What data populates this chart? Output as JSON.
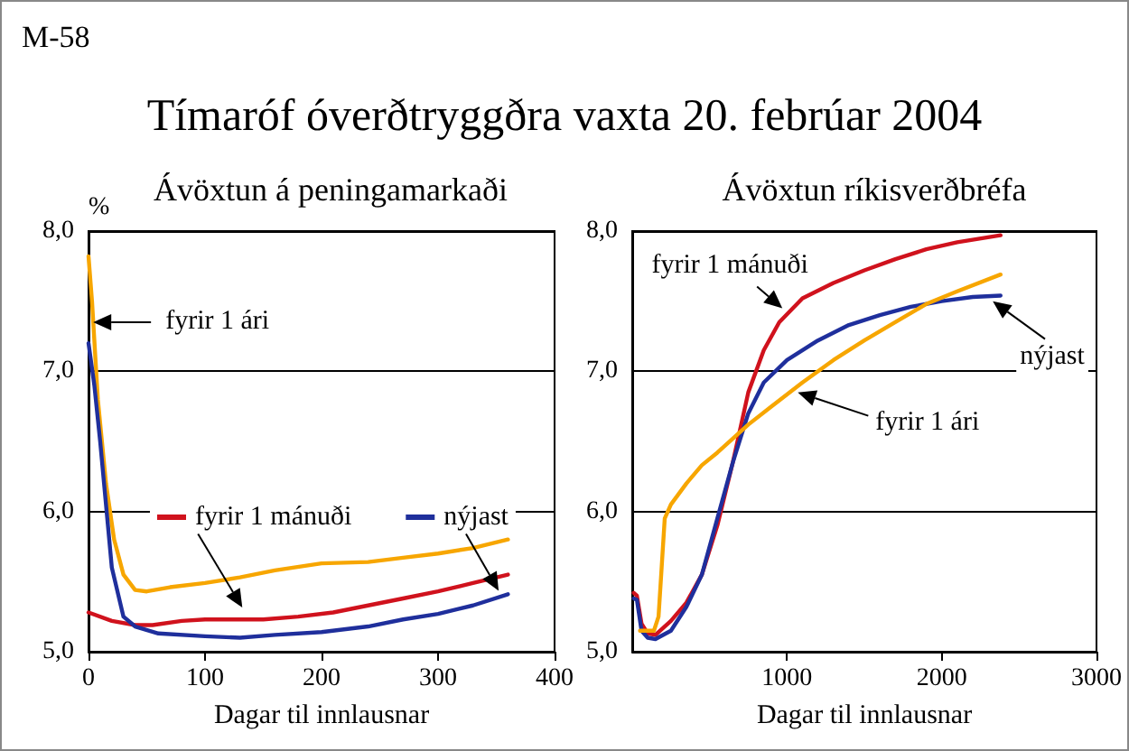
{
  "chart_data": [
    {
      "type": "line",
      "title": "Tímaróf óverðtryggðra vaxta 20. febrúar 2004",
      "subtitle": "Ávöxtun á peningamarkaði",
      "xlabel": "Dagar til innlausnar",
      "ylabel": "%",
      "annotations": [
        "M-58",
        {
          "text": "fyrir 1 ári",
          "x": 4,
          "y": 7.35
        }
      ],
      "xlim": [
        0,
        400
      ],
      "xticks": [
        0,
        100,
        200,
        300,
        400
      ],
      "ylim": [
        5,
        8
      ],
      "yticks": [
        {
          "value": 5,
          "label": "5,0"
        },
        {
          "value": 6,
          "label": "6,0"
        },
        {
          "value": 7,
          "label": "7,0"
        },
        {
          "value": 8,
          "label": "8,0"
        }
      ],
      "grid": "y",
      "legend": "center",
      "marker": "none",
      "line_style": "solid",
      "series": [
        {
          "color": "#f7a600",
          "x": [
            0,
            3,
            8,
            15,
            22,
            30,
            40,
            50,
            70,
            100,
            130,
            160,
            200,
            240,
            270,
            300,
            330,
            360
          ],
          "values": [
            7.82,
            7.5,
            6.8,
            6.2,
            5.8,
            5.55,
            5.44,
            5.43,
            5.46,
            5.49,
            5.53,
            5.58,
            5.63,
            5.64,
            5.67,
            5.7,
            5.74,
            5.8
          ]
        },
        {
          "name": "fyrir 1 mánuði",
          "color": "#d0121d",
          "x": [
            0,
            20,
            40,
            55,
            80,
            100,
            150,
            180,
            210,
            240,
            270,
            300,
            330,
            360
          ],
          "values": [
            5.28,
            5.22,
            5.19,
            5.19,
            5.22,
            5.23,
            5.23,
            5.25,
            5.28,
            5.33,
            5.38,
            5.43,
            5.49,
            5.55
          ]
        },
        {
          "name": "nýjast",
          "color": "#1f2f9c",
          "x": [
            0,
            5,
            10,
            20,
            30,
            40,
            60,
            100,
            130,
            160,
            200,
            240,
            270,
            300,
            330,
            360
          ],
          "values": [
            7.2,
            6.9,
            6.5,
            5.6,
            5.25,
            5.18,
            5.13,
            5.11,
            5.1,
            5.12,
            5.14,
            5.18,
            5.23,
            5.27,
            5.33,
            5.41
          ]
        }
      ]
    },
    {
      "type": "line",
      "title": "Ávöxtun ríkisverðbréfa",
      "xlabel": "Dagar til innlausnar",
      "annotations": [
        {
          "text": "fyrir 1 mánuði",
          "x": 970,
          "y": 7.45
        },
        {
          "text": "nýjast",
          "x": 2330,
          "y": 7.5
        },
        {
          "text": "fyrir 1 ári",
          "x": 1070,
          "y": 6.85
        }
      ],
      "xlim": [
        0,
        3000
      ],
      "xticks": [
        1000,
        2000,
        3000
      ],
      "ylim": [
        5,
        8
      ],
      "yticks": [
        {
          "value": 5,
          "label": "5,0"
        },
        {
          "value": 6,
          "label": "6,0"
        },
        {
          "value": 7,
          "label": "7,0"
        },
        {
          "value": 8,
          "label": "8,0"
        }
      ],
      "grid": "y",
      "marker": "none",
      "line_style": "solid",
      "series": [
        {
          "color": "#d0121d",
          "x": [
            10,
            30,
            60,
            100,
            150,
            250,
            350,
            450,
            550,
            650,
            750,
            850,
            950,
            1100,
            1300,
            1500,
            1700,
            1900,
            2100,
            2380
          ],
          "values": [
            5.42,
            5.4,
            5.2,
            5.13,
            5.12,
            5.22,
            5.35,
            5.55,
            5.9,
            6.35,
            6.85,
            7.15,
            7.35,
            7.52,
            7.63,
            7.72,
            7.8,
            7.87,
            7.92,
            7.97
          ]
        },
        {
          "color": "#1f2f9c",
          "x": [
            10,
            30,
            60,
            100,
            150,
            250,
            350,
            450,
            550,
            650,
            750,
            850,
            1000,
            1200,
            1400,
            1600,
            1800,
            2000,
            2200,
            2380
          ],
          "values": [
            5.38,
            5.37,
            5.15,
            5.1,
            5.09,
            5.15,
            5.32,
            5.55,
            5.95,
            6.35,
            6.7,
            6.92,
            7.08,
            7.22,
            7.33,
            7.4,
            7.46,
            7.5,
            7.53,
            7.54
          ]
        },
        {
          "color": "#f7a600",
          "x": [
            50,
            100,
            140,
            170,
            190,
            210,
            250,
            350,
            450,
            550,
            650,
            750,
            900,
            1100,
            1300,
            1500,
            1700,
            1900,
            2100,
            2380
          ],
          "values": [
            5.15,
            5.15,
            5.15,
            5.25,
            5.6,
            5.95,
            6.05,
            6.2,
            6.33,
            6.42,
            6.52,
            6.62,
            6.75,
            6.92,
            7.08,
            7.22,
            7.35,
            7.48,
            7.57,
            7.69
          ]
        }
      ]
    }
  ]
}
